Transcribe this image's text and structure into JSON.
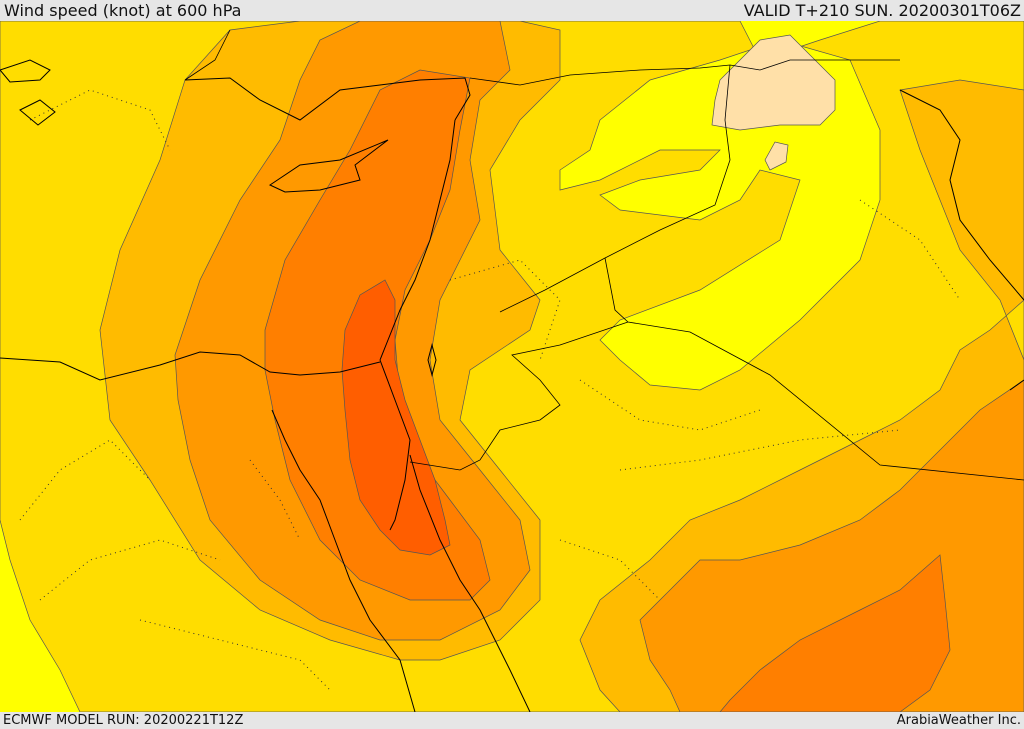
{
  "header": {
    "title": "Wind speed (knot) at 600 hPa",
    "valid": "VALID T+210 SUN. 20200301T06Z"
  },
  "footer": {
    "model_run": "ECMWF MODEL RUN: 20200221T12Z",
    "credit": "ArabiaWeather Inc."
  },
  "colors": {
    "band_lightest": "#ffff00",
    "band_light": "#ffdd00",
    "band_mid": "#ffbb00",
    "band_orange": "#ff9900",
    "band_dark_orange": "#ff7f00",
    "band_red_orange": "#ff5e00",
    "calm_patch": "#ffe0a8",
    "bar_background": "#e6e6e6"
  }
}
